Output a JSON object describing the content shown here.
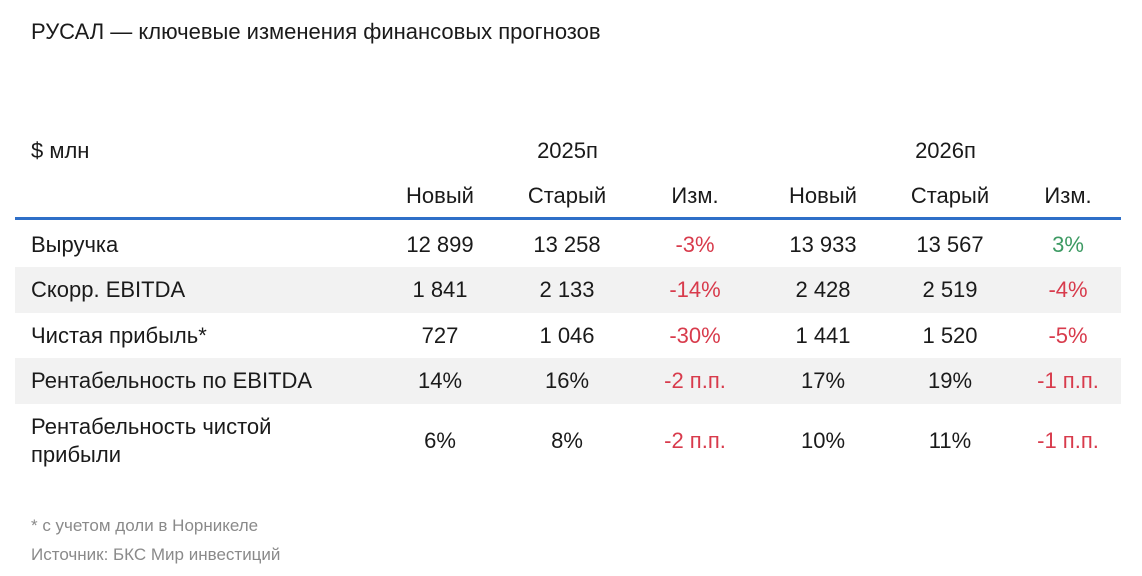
{
  "title": "РУСАЛ — ключевые изменения финансовых прогнозов",
  "table": {
    "unit_label": "$ млн",
    "groups": [
      "2025п",
      "2026п"
    ],
    "subheaders": [
      "Новый",
      "Старый",
      "Изм.",
      "Новый",
      "Старый",
      "Изм."
    ],
    "rows": [
      {
        "label": "Выручка",
        "values": [
          "12 899",
          "13 258",
          "-3%",
          "13 933",
          "13 567",
          "3%"
        ]
      },
      {
        "label": "Скорр. EBITDA",
        "values": [
          "1 841",
          "2 133",
          "-14%",
          "2 428",
          "2 519",
          "-4%"
        ]
      },
      {
        "label": "Чистая прибыль*",
        "values": [
          "727",
          "1 046",
          "-30%",
          "1 441",
          "1 520",
          "-5%"
        ]
      },
      {
        "label": "Рентабельность по EBITDA",
        "values": [
          "14%",
          "16%",
          "-2 п.п.",
          "17%",
          "19%",
          "-1 п.п."
        ]
      },
      {
        "label": "Рентабельность чистой прибыли",
        "values": [
          "6%",
          "8%",
          "-2 п.п.",
          "10%",
          "11%",
          "-1 п.п."
        ]
      }
    ]
  },
  "footnotes": {
    "note": "* с учетом доли в Норникеле",
    "source": "Источник: БКС Мир инвестиций"
  },
  "colors": {
    "header_rule": "#2f6fc8",
    "negative": "#d83b4c",
    "positive": "#3d9a63",
    "row_shade": "#f2f2f2"
  }
}
